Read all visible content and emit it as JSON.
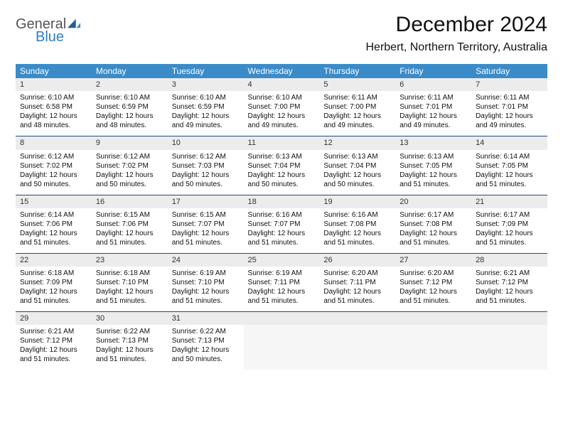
{
  "logo": {
    "word1": "General",
    "word2": "Blue"
  },
  "title": "December 2024",
  "location": "Herbert, Northern Territory, Australia",
  "colors": {
    "header_bg": "#3b8bc9",
    "header_fg": "#ffffff",
    "daynum_bg": "#ececec",
    "rule": "#1d4d7a",
    "logo_blue": "#2f7ec0",
    "logo_gray": "#555555"
  },
  "dow": [
    "Sunday",
    "Monday",
    "Tuesday",
    "Wednesday",
    "Thursday",
    "Friday",
    "Saturday"
  ],
  "calendar": {
    "first_weekday": 0,
    "days_in_month": 31,
    "rows": 5,
    "cols": 7
  },
  "days": {
    "1": {
      "sunrise": "6:10 AM",
      "sunset": "6:58 PM",
      "daylight": "12 hours and 48 minutes."
    },
    "2": {
      "sunrise": "6:10 AM",
      "sunset": "6:59 PM",
      "daylight": "12 hours and 48 minutes."
    },
    "3": {
      "sunrise": "6:10 AM",
      "sunset": "6:59 PM",
      "daylight": "12 hours and 49 minutes."
    },
    "4": {
      "sunrise": "6:10 AM",
      "sunset": "7:00 PM",
      "daylight": "12 hours and 49 minutes."
    },
    "5": {
      "sunrise": "6:11 AM",
      "sunset": "7:00 PM",
      "daylight": "12 hours and 49 minutes."
    },
    "6": {
      "sunrise": "6:11 AM",
      "sunset": "7:01 PM",
      "daylight": "12 hours and 49 minutes."
    },
    "7": {
      "sunrise": "6:11 AM",
      "sunset": "7:01 PM",
      "daylight": "12 hours and 49 minutes."
    },
    "8": {
      "sunrise": "6:12 AM",
      "sunset": "7:02 PM",
      "daylight": "12 hours and 50 minutes."
    },
    "9": {
      "sunrise": "6:12 AM",
      "sunset": "7:02 PM",
      "daylight": "12 hours and 50 minutes."
    },
    "10": {
      "sunrise": "6:12 AM",
      "sunset": "7:03 PM",
      "daylight": "12 hours and 50 minutes."
    },
    "11": {
      "sunrise": "6:13 AM",
      "sunset": "7:04 PM",
      "daylight": "12 hours and 50 minutes."
    },
    "12": {
      "sunrise": "6:13 AM",
      "sunset": "7:04 PM",
      "daylight": "12 hours and 50 minutes."
    },
    "13": {
      "sunrise": "6:13 AM",
      "sunset": "7:05 PM",
      "daylight": "12 hours and 51 minutes."
    },
    "14": {
      "sunrise": "6:14 AM",
      "sunset": "7:05 PM",
      "daylight": "12 hours and 51 minutes."
    },
    "15": {
      "sunrise": "6:14 AM",
      "sunset": "7:06 PM",
      "daylight": "12 hours and 51 minutes."
    },
    "16": {
      "sunrise": "6:15 AM",
      "sunset": "7:06 PM",
      "daylight": "12 hours and 51 minutes."
    },
    "17": {
      "sunrise": "6:15 AM",
      "sunset": "7:07 PM",
      "daylight": "12 hours and 51 minutes."
    },
    "18": {
      "sunrise": "6:16 AM",
      "sunset": "7:07 PM",
      "daylight": "12 hours and 51 minutes."
    },
    "19": {
      "sunrise": "6:16 AM",
      "sunset": "7:08 PM",
      "daylight": "12 hours and 51 minutes."
    },
    "20": {
      "sunrise": "6:17 AM",
      "sunset": "7:08 PM",
      "daylight": "12 hours and 51 minutes."
    },
    "21": {
      "sunrise": "6:17 AM",
      "sunset": "7:09 PM",
      "daylight": "12 hours and 51 minutes."
    },
    "22": {
      "sunrise": "6:18 AM",
      "sunset": "7:09 PM",
      "daylight": "12 hours and 51 minutes."
    },
    "23": {
      "sunrise": "6:18 AM",
      "sunset": "7:10 PM",
      "daylight": "12 hours and 51 minutes."
    },
    "24": {
      "sunrise": "6:19 AM",
      "sunset": "7:10 PM",
      "daylight": "12 hours and 51 minutes."
    },
    "25": {
      "sunrise": "6:19 AM",
      "sunset": "7:11 PM",
      "daylight": "12 hours and 51 minutes."
    },
    "26": {
      "sunrise": "6:20 AM",
      "sunset": "7:11 PM",
      "daylight": "12 hours and 51 minutes."
    },
    "27": {
      "sunrise": "6:20 AM",
      "sunset": "7:12 PM",
      "daylight": "12 hours and 51 minutes."
    },
    "28": {
      "sunrise": "6:21 AM",
      "sunset": "7:12 PM",
      "daylight": "12 hours and 51 minutes."
    },
    "29": {
      "sunrise": "6:21 AM",
      "sunset": "7:12 PM",
      "daylight": "12 hours and 51 minutes."
    },
    "30": {
      "sunrise": "6:22 AM",
      "sunset": "7:13 PM",
      "daylight": "12 hours and 51 minutes."
    },
    "31": {
      "sunrise": "6:22 AM",
      "sunset": "7:13 PM",
      "daylight": "12 hours and 50 minutes."
    }
  },
  "labels": {
    "sunrise": "Sunrise: ",
    "sunset": "Sunset: ",
    "daylight": "Daylight: "
  }
}
